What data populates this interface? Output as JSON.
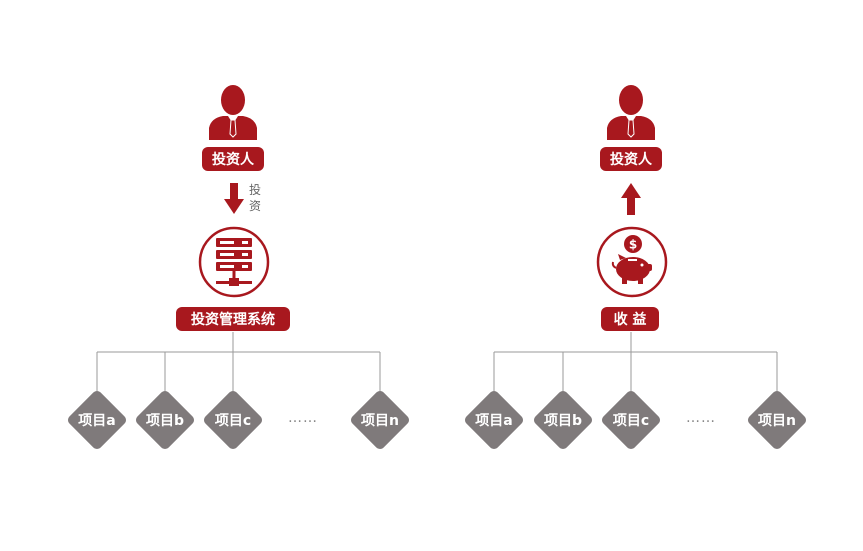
{
  "colors": {
    "accent": "#a8181e",
    "node": "#7f7a7b",
    "line": "#9a9a9a"
  },
  "left": {
    "investor_label": "投资人",
    "arrow_text": [
      "投",
      "资"
    ],
    "system_label": "投资管理系统",
    "items": [
      "项目a",
      "项目b",
      "项目c",
      "项目n"
    ],
    "ellipsis": "……"
  },
  "right": {
    "investor_label": "投资人",
    "return_label": "收 益",
    "items": [
      "项目a",
      "项目b",
      "项目c",
      "项目n"
    ],
    "ellipsis": "……"
  },
  "icons": {
    "person": "person-icon",
    "server": "server-icon",
    "piggy": "piggy-bank-icon",
    "arrow_down": "arrow-down-icon",
    "arrow_up": "arrow-up-icon"
  }
}
